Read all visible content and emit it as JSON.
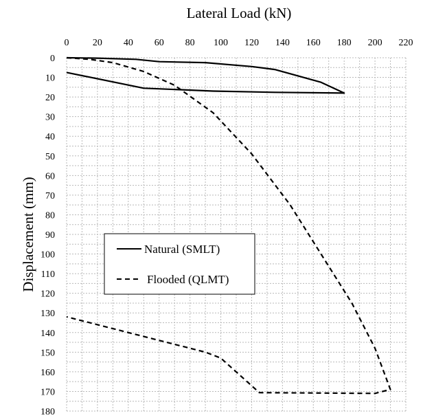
{
  "chart_data": {
    "type": "line",
    "title": "",
    "xlabel": "Lateral Load (kN)",
    "ylabel": "Displacement (mm)",
    "x_axis_position": "top",
    "y_axis_inverted": true,
    "xlim": [
      0,
      220
    ],
    "ylim": [
      0,
      180
    ],
    "xticks": [
      0,
      20,
      40,
      60,
      80,
      100,
      120,
      140,
      160,
      180,
      200,
      220
    ],
    "yticks": [
      0,
      10,
      20,
      30,
      40,
      50,
      60,
      70,
      80,
      90,
      100,
      110,
      120,
      130,
      140,
      150,
      160,
      170,
      180
    ],
    "grid": "dashed, 10 kN by 5 mm",
    "legend_position": "middle-left",
    "series": [
      {
        "name": "Natural (SMLT)",
        "style": "solid",
        "color": "#000000",
        "x": [
          0,
          20,
          45,
          60,
          90,
          120,
          135,
          165,
          180,
          135,
          95,
          50,
          0
        ],
        "y": [
          0,
          0.2,
          0.8,
          2.0,
          2.5,
          4.5,
          6.0,
          12.5,
          18.0,
          17.6,
          17.0,
          15.5,
          7.5
        ]
      },
      {
        "name": "Flooded (QLMT)",
        "style": "dashed",
        "color": "#000000",
        "x": [
          0,
          15,
          30,
          50,
          70,
          95,
          120,
          145,
          165,
          185,
          200,
          210,
          200,
          160,
          125,
          100,
          90,
          50,
          0
        ],
        "y": [
          0,
          0.8,
          2.5,
          7.0,
          14.0,
          28.0,
          49.0,
          75.0,
          100.0,
          125.0,
          148.0,
          169.0,
          171.0,
          170.8,
          170.6,
          153.0,
          150.0,
          142.0,
          132.0
        ]
      }
    ]
  }
}
